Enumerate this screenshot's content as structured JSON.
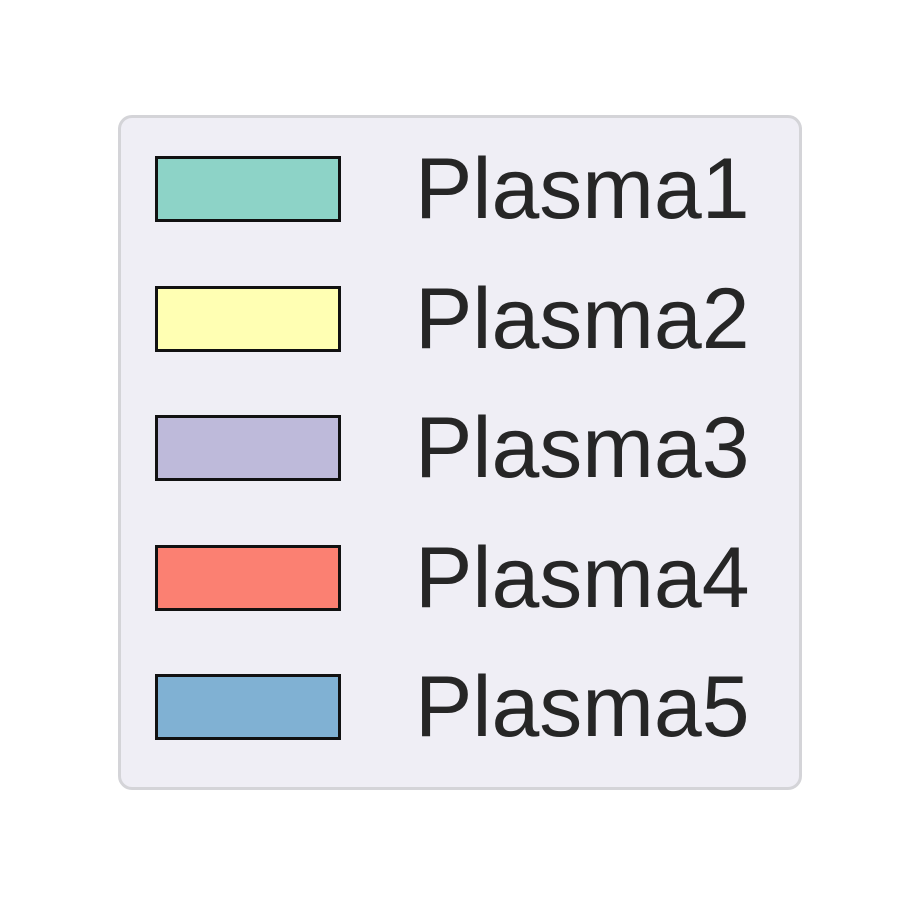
{
  "chart_data": {
    "type": "legend",
    "legend_placement": "center",
    "entries": [
      {
        "label": "Plasma1",
        "color": "#8dd3c7"
      },
      {
        "label": "Plasma2",
        "color": "#ffffb3"
      },
      {
        "label": "Plasma3",
        "color": "#bebada"
      },
      {
        "label": "Plasma4",
        "color": "#fb8072"
      },
      {
        "label": "Plasma5",
        "color": "#80b1d3"
      }
    ]
  }
}
